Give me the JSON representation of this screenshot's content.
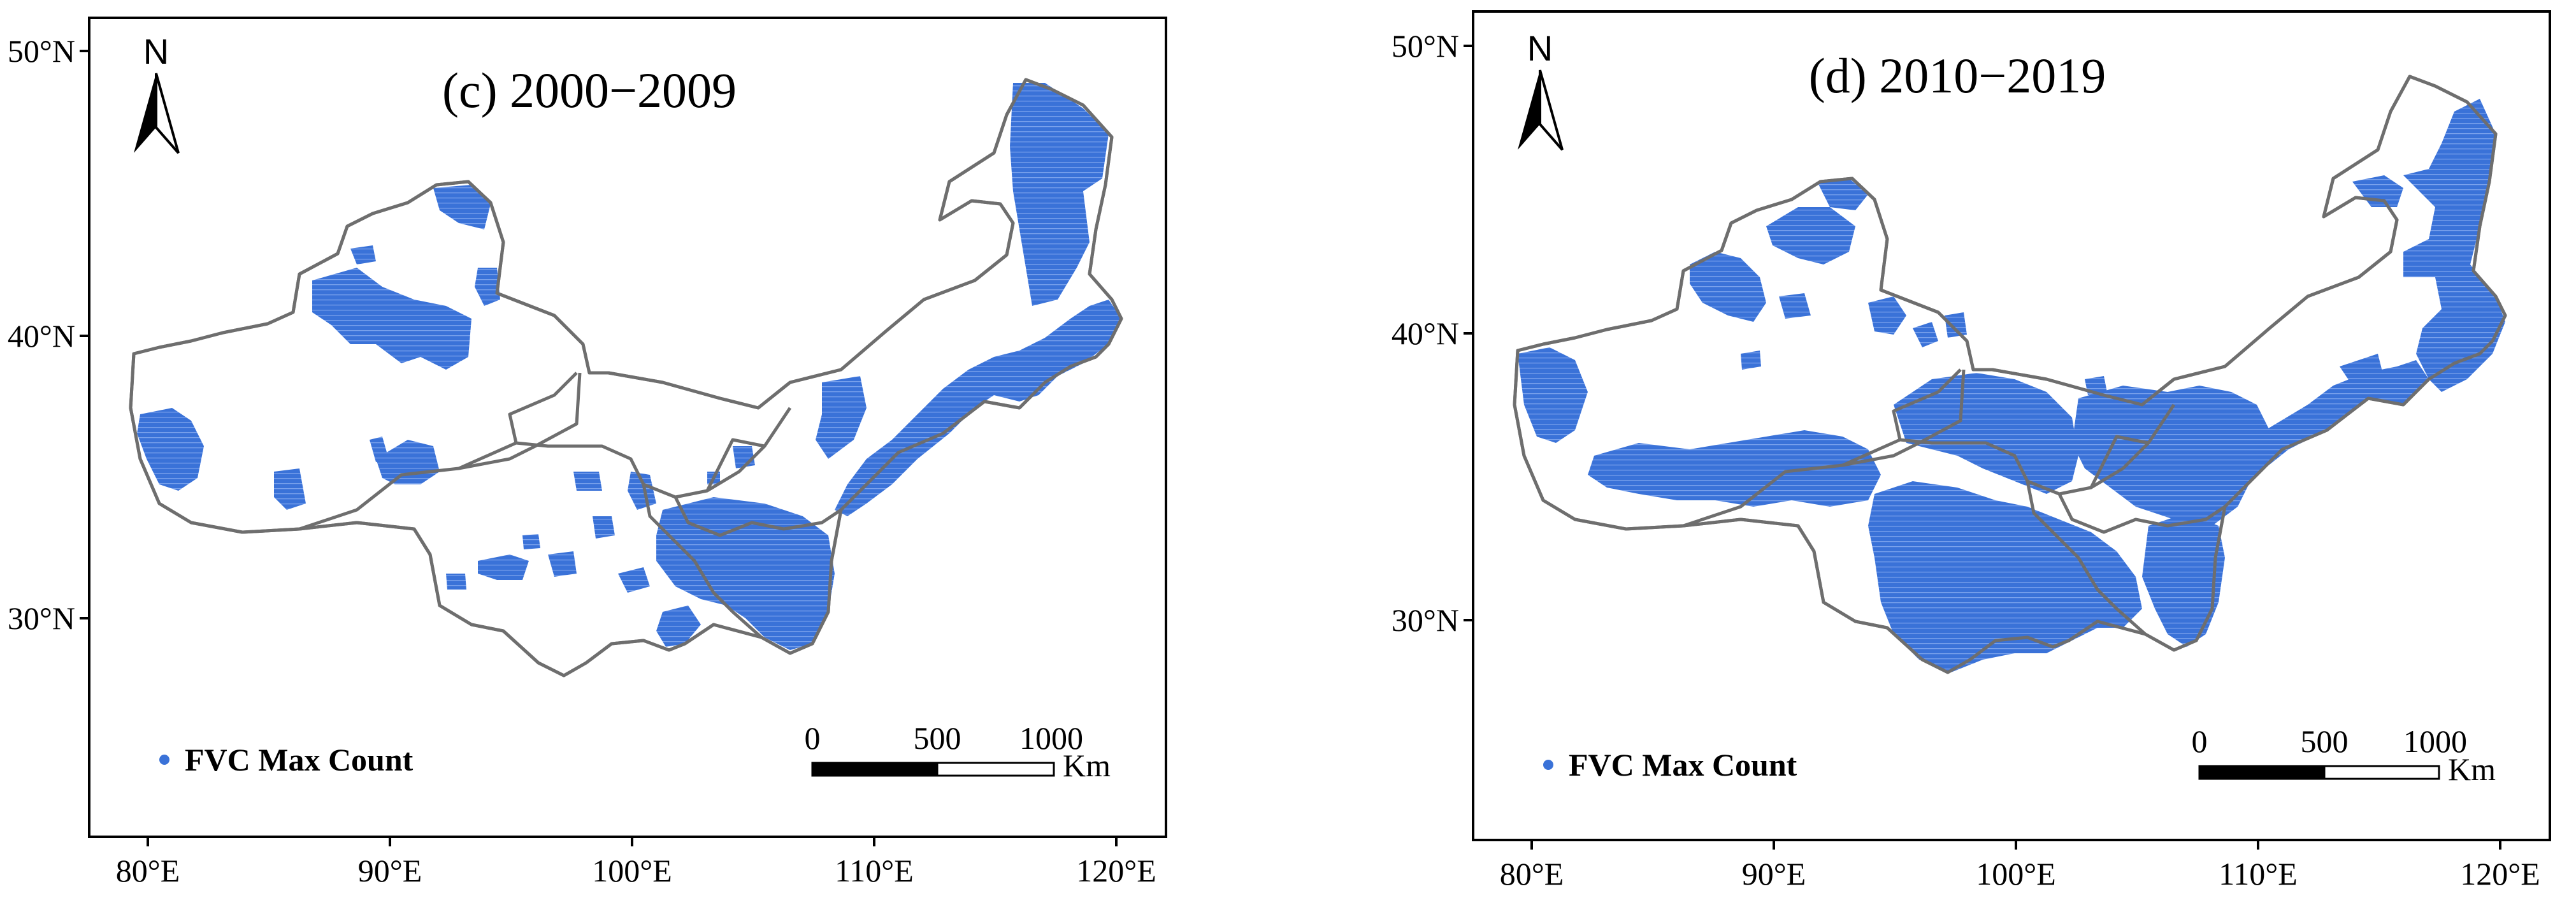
{
  "panels": [
    {
      "title": "(c) 2000−2009",
      "legend_label": "FVC Max Count",
      "north_label": "N",
      "scale": {
        "labels": [
          "0",
          "500",
          "1000"
        ],
        "unit": "Km"
      },
      "x_ticks": [
        "80°E",
        "90°E",
        "100°E",
        "110°E",
        "120°E"
      ],
      "y_ticks": [
        "50°N",
        "40°N",
        "30°N"
      ],
      "colors": {
        "fvc": "#3a72d8",
        "boundary": "#6e6e6e"
      }
    },
    {
      "title": "(d) 2010−2019",
      "legend_label": "FVC Max Count",
      "north_label": "N",
      "scale": {
        "labels": [
          "0",
          "500",
          "1000"
        ],
        "unit": "Km"
      },
      "x_ticks": [
        "80°E",
        "90°E",
        "100°E",
        "110°E",
        "120°E"
      ],
      "y_ticks": [
        "50°N",
        "40°N",
        "30°N"
      ],
      "colors": {
        "fvc": "#3a72d8",
        "boundary": "#6e6e6e"
      }
    }
  ]
}
